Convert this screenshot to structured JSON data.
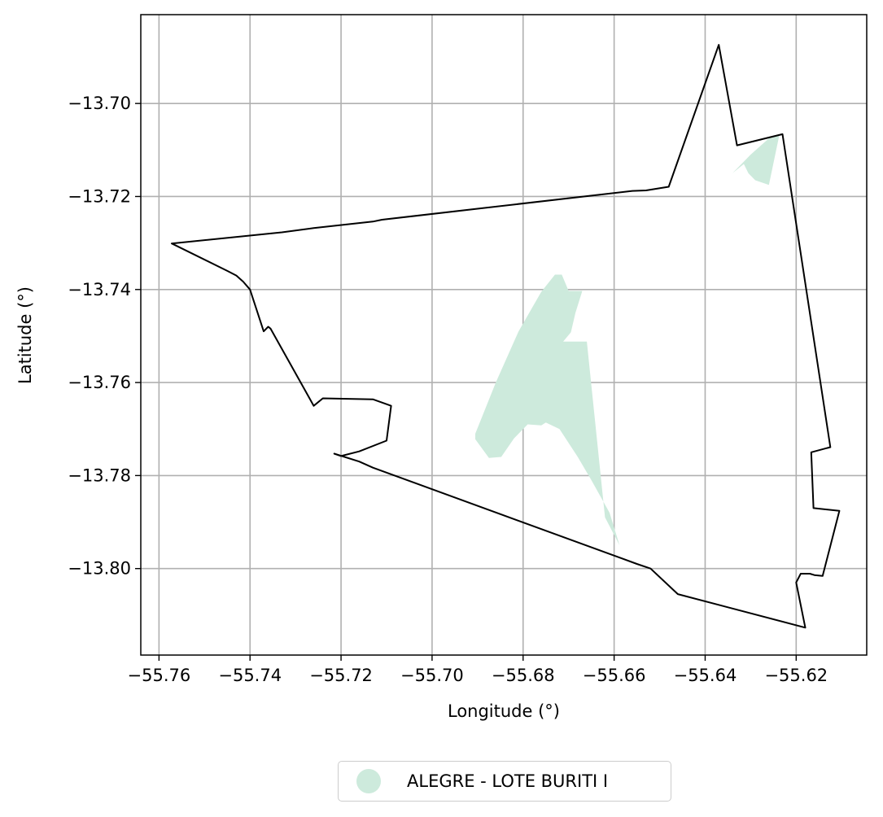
{
  "chart_data": {
    "type": "map",
    "xlabel": "Longitude (°)",
    "ylabel": "Latitude (°)",
    "xlim": [
      -55.764,
      -55.6045
    ],
    "ylim": [
      -13.8186,
      -13.6809
    ],
    "grid": true,
    "x_ticks": [
      -55.76,
      -55.74,
      -55.72,
      -55.7,
      -55.68,
      -55.66,
      -55.64,
      -55.62
    ],
    "x_tick_labels": [
      "−55.76",
      "−55.74",
      "−55.72",
      "−55.70",
      "−55.68",
      "−55.66",
      "−55.64",
      "−55.62"
    ],
    "y_ticks": [
      -13.7,
      -13.72,
      -13.74,
      -13.76,
      -13.78,
      -13.8
    ],
    "y_tick_labels": [
      "−13.70",
      "−13.72",
      "−13.74",
      "−13.76",
      "−13.78",
      "−13.80"
    ],
    "boundary": {
      "color": "#000000",
      "coords": [
        [
          -55.7572,
          -13.7301
        ],
        [
          -55.733,
          -13.7277
        ],
        [
          -55.726,
          -13.7268
        ],
        [
          -55.713,
          -13.7254
        ],
        [
          -55.711,
          -13.725
        ],
        [
          -55.656,
          -13.7188
        ],
        [
          -55.653,
          -13.7187
        ],
        [
          -55.648,
          -13.7179
        ],
        [
          -55.637,
          -13.6874
        ],
        [
          -55.633,
          -13.709
        ],
        [
          -55.623,
          -13.7066
        ],
        [
          -55.6125,
          -13.7739
        ],
        [
          -55.6167,
          -13.775
        ],
        [
          -55.6162,
          -13.787
        ],
        [
          -55.6105,
          -13.7876
        ],
        [
          -55.6142,
          -13.8016
        ],
        [
          -55.616,
          -13.8014
        ],
        [
          -55.617,
          -13.8011
        ],
        [
          -55.619,
          -13.8011
        ],
        [
          -55.62,
          -13.803
        ],
        [
          -55.618,
          -13.8127
        ],
        [
          -55.646,
          -13.8055
        ],
        [
          -55.652,
          -13.8
        ],
        [
          -55.655,
          -13.799
        ],
        [
          -55.713,
          -13.7783
        ],
        [
          -55.716,
          -13.777
        ],
        [
          -55.7215,
          -13.7753
        ],
        [
          -55.72,
          -13.7758
        ],
        [
          -55.716,
          -13.7748
        ],
        [
          -55.71,
          -13.7725
        ],
        [
          -55.709,
          -13.765
        ],
        [
          -55.713,
          -13.7636
        ],
        [
          -55.724,
          -13.7634
        ],
        [
          -55.726,
          -13.765
        ],
        [
          -55.7355,
          -13.7484
        ],
        [
          -55.736,
          -13.748
        ],
        [
          -55.737,
          -13.749
        ],
        [
          -55.74,
          -13.74
        ],
        [
          -55.7415,
          -13.7383
        ],
        [
          -55.743,
          -13.737
        ],
        [
          -55.745,
          -13.736
        ],
        [
          -55.7572,
          -13.7301
        ]
      ]
    },
    "features": [
      {
        "name": "ALEGRE - LOTE BURITI I",
        "color": "#cdeadc",
        "polygons": [
          [
            [
              -55.673,
              -13.7368
            ],
            [
              -55.6715,
              -13.7368
            ],
            [
              -55.67,
              -13.7403
            ],
            [
              -55.667,
              -13.7403
            ],
            [
              -55.6685,
              -13.745
            ],
            [
              -55.6695,
              -13.7492
            ],
            [
              -55.6712,
              -13.7512
            ],
            [
              -55.668,
              -13.7512
            ],
            [
              -55.666,
              -13.7512
            ],
            [
              -55.662,
              -13.789
            ],
            [
              -55.6588,
              -13.795
            ],
            [
              -55.661,
              -13.788
            ],
            [
              -55.665,
              -13.781
            ],
            [
              -55.668,
              -13.776
            ],
            [
              -55.672,
              -13.77
            ],
            [
              -55.675,
              -13.7686
            ],
            [
              -55.676,
              -13.7692
            ],
            [
              -55.679,
              -13.769
            ],
            [
              -55.682,
              -13.772
            ],
            [
              -55.6848,
              -13.776
            ],
            [
              -55.6875,
              -13.7762
            ],
            [
              -55.6905,
              -13.7722
            ],
            [
              -55.6905,
              -13.771
            ],
            [
              -55.686,
              -13.76
            ],
            [
              -55.681,
              -13.749
            ],
            [
              -55.676,
              -13.7405
            ]
          ],
          [
            [
              -55.634,
              -13.715
            ],
            [
              -55.63,
              -13.711
            ],
            [
              -55.626,
              -13.7075
            ],
            [
              -55.6237,
              -13.7068
            ],
            [
              -55.626,
              -13.7175
            ],
            [
              -55.629,
              -13.7165
            ],
            [
              -55.6305,
              -13.715
            ],
            [
              -55.6315,
              -13.713
            ]
          ]
        ]
      }
    ],
    "legend": {
      "placement": "bottom-center",
      "entries": [
        {
          "label": "ALEGRE - LOTE BURITI I",
          "color": "#cdeadc"
        }
      ]
    }
  }
}
